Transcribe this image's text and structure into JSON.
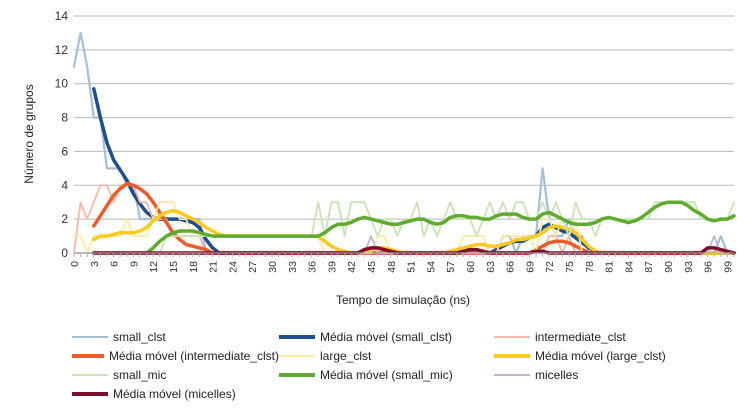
{
  "chart_data": {
    "type": "line",
    "xlabel": "Tempo de simulação (ns)",
    "ylabel": "Número de grupos",
    "ylim": [
      0,
      14
    ],
    "yticks": [
      0,
      2,
      4,
      6,
      8,
      10,
      12,
      14
    ],
    "xlim": [
      0,
      100
    ],
    "xticks": [
      0,
      3,
      6,
      9,
      12,
      15,
      18,
      21,
      24,
      27,
      30,
      33,
      36,
      39,
      42,
      45,
      48,
      51,
      54,
      57,
      60,
      63,
      66,
      69,
      72,
      75,
      78,
      81,
      84,
      87,
      90,
      93,
      96,
      99
    ],
    "x": [
      0,
      1,
      2,
      3,
      4,
      5,
      6,
      7,
      8,
      9,
      10,
      11,
      12,
      13,
      14,
      15,
      16,
      17,
      18,
      19,
      20,
      21,
      22,
      23,
      24,
      25,
      26,
      27,
      28,
      29,
      30,
      31,
      32,
      33,
      34,
      35,
      36,
      37,
      38,
      39,
      40,
      41,
      42,
      43,
      44,
      45,
      46,
      47,
      48,
      49,
      50,
      51,
      52,
      53,
      54,
      55,
      56,
      57,
      58,
      59,
      60,
      61,
      62,
      63,
      64,
      65,
      66,
      67,
      68,
      69,
      70,
      71,
      72,
      73,
      74,
      75,
      76,
      77,
      78,
      79,
      80,
      81,
      82,
      83,
      84,
      85,
      86,
      87,
      88,
      89,
      90,
      91,
      92,
      93,
      94,
      95,
      96,
      97,
      98,
      99,
      100
    ],
    "grid": "horizontal",
    "legend_position": "bottom",
    "series": [
      {
        "name": "small_clst",
        "color": "#a4bfd8",
        "width": 2.2,
        "values": [
          11,
          13,
          11,
          8,
          8,
          5,
          5,
          5,
          4,
          4,
          2,
          2,
          2,
          2,
          2,
          2,
          2,
          2,
          2,
          2,
          0,
          0,
          0,
          0,
          0,
          0,
          0,
          0,
          0,
          0,
          0,
          0,
          0,
          0,
          0,
          0,
          0,
          0,
          0,
          0,
          0,
          0,
          0,
          0,
          0,
          0,
          0,
          0,
          0,
          0,
          0,
          0,
          0,
          0,
          0,
          0,
          0,
          0,
          0,
          0,
          0,
          0,
          0,
          0,
          0,
          1,
          1,
          0,
          1,
          1,
          1,
          5,
          2,
          1,
          1,
          2,
          1,
          1,
          0,
          0,
          0,
          0,
          0,
          0,
          0,
          0,
          0,
          0,
          0,
          0,
          0,
          0,
          0,
          0,
          0,
          0,
          0,
          0,
          1,
          0,
          0
        ]
      },
      {
        "name": "Média móvel (small_clst)",
        "color": "#1f4e8c",
        "width": 3.5,
        "values": [
          null,
          null,
          null,
          9.7,
          8,
          6.5,
          5.5,
          4.9,
          4.3,
          3.5,
          2.9,
          2.4,
          2.1,
          2,
          2,
          2,
          2,
          1.9,
          1.8,
          1.5,
          0.8,
          0.3,
          0,
          0,
          0,
          0,
          0,
          0,
          0,
          0,
          0,
          0,
          0,
          0,
          0,
          0,
          0,
          0,
          0,
          0,
          0,
          0,
          0,
          0,
          0,
          0,
          0,
          0,
          0,
          0,
          0,
          0,
          0,
          0,
          0,
          0,
          0,
          0,
          0,
          0,
          0,
          0,
          0,
          0,
          0.2,
          0.4,
          0.6,
          0.7,
          0.7,
          0.9,
          1,
          1.5,
          1.7,
          1.5,
          1.3,
          1.2,
          0.9,
          0.6,
          0.3,
          0.1,
          0,
          0,
          0,
          0,
          0,
          0,
          0,
          0,
          0,
          0,
          0,
          0,
          0,
          0,
          0,
          0,
          0,
          0,
          0,
          0,
          0
        ]
      },
      {
        "name": "intermediate_clst",
        "color": "#f7b9a5",
        "width": 1.8,
        "values": [
          0,
          3,
          2,
          3,
          4,
          4,
          3,
          4,
          4,
          4,
          3,
          3,
          2,
          2,
          2,
          1,
          1,
          1,
          1,
          1,
          0,
          0,
          0,
          0,
          0,
          0,
          0,
          0,
          0,
          0,
          0,
          0,
          0,
          0,
          0,
          0,
          0,
          0,
          0,
          0,
          0,
          0,
          0,
          0,
          0,
          0,
          0,
          0,
          0,
          0,
          0,
          0,
          0,
          0,
          0,
          0,
          0,
          0,
          0,
          0,
          0,
          0,
          0,
          0,
          0,
          0,
          0,
          0,
          0,
          0,
          0,
          0,
          1,
          1,
          0,
          1,
          0,
          0,
          0,
          0,
          0,
          0,
          0,
          0,
          0,
          0,
          0,
          0,
          0,
          0,
          0,
          0,
          0,
          0,
          0,
          0,
          0,
          0,
          0,
          0,
          0
        ]
      },
      {
        "name": "Média móvel (intermediate_clst)",
        "color": "#f05a28",
        "width": 3.5,
        "values": [
          null,
          null,
          null,
          1.6,
          2.2,
          2.8,
          3.4,
          3.8,
          4.1,
          4,
          3.8,
          3.5,
          3,
          2.4,
          1.8,
          1.2,
          0.8,
          0.5,
          0.4,
          0.3,
          0.2,
          0,
          0,
          0,
          0,
          0,
          0,
          0,
          0,
          0,
          0,
          0,
          0,
          0,
          0,
          0,
          0,
          0,
          0,
          0,
          0,
          0,
          0,
          0,
          0,
          0,
          0,
          0,
          0,
          0,
          0,
          0,
          0,
          0,
          0,
          0,
          0,
          0,
          0,
          0,
          0,
          0,
          0,
          0,
          0,
          0,
          0,
          0,
          0,
          0,
          0.2,
          0.4,
          0.6,
          0.7,
          0.7,
          0.6,
          0.4,
          0.2,
          0,
          0,
          0,
          0,
          0,
          0,
          0,
          0,
          0,
          0,
          0,
          0,
          0,
          0,
          0,
          0,
          0,
          0,
          0,
          0,
          0,
          0,
          0
        ]
      },
      {
        "name": "large_clst",
        "color": "#fce9a2",
        "width": 1.8,
        "values": [
          1,
          1,
          0,
          1,
          1,
          1,
          1,
          1,
          2,
          1,
          1,
          1,
          2,
          3,
          3,
          3,
          2,
          2,
          1,
          1,
          1,
          1,
          1,
          1,
          1,
          1,
          1,
          1,
          1,
          1,
          1,
          1,
          1,
          1,
          1,
          1,
          1,
          1,
          0,
          0,
          0,
          0,
          0,
          0,
          0,
          0,
          1,
          1,
          0,
          0,
          0,
          0,
          0,
          0,
          0,
          0,
          0,
          0,
          0,
          1,
          1,
          1,
          1,
          0,
          0,
          1,
          1,
          1,
          1,
          1,
          0,
          2,
          2,
          1,
          2,
          1,
          2,
          0,
          0,
          0,
          0,
          0,
          0,
          0,
          0,
          0,
          0,
          0,
          0,
          0,
          0,
          0,
          0,
          0,
          0,
          0,
          0,
          0,
          0,
          0,
          0
        ]
      },
      {
        "name": "Média móvel (large_clst)",
        "color": "#fbca1c",
        "width": 3.5,
        "values": [
          null,
          null,
          null,
          0.8,
          1,
          1,
          1.1,
          1.2,
          1.2,
          1.2,
          1.3,
          1.5,
          1.9,
          2.2,
          2.4,
          2.5,
          2.4,
          2.2,
          2,
          1.8,
          1.5,
          1.3,
          1.1,
          1,
          1,
          1,
          1,
          1,
          1,
          1,
          1,
          1,
          1,
          1,
          1,
          1,
          1,
          1,
          0.7,
          0.4,
          0.2,
          0.1,
          0,
          0,
          0.1,
          0.2,
          0.3,
          0.3,
          0.2,
          0.1,
          0,
          0,
          0,
          0,
          0,
          0,
          0,
          0.1,
          0.2,
          0.3,
          0.4,
          0.5,
          0.5,
          0.4,
          0.4,
          0.5,
          0.6,
          0.8,
          0.8,
          0.9,
          1,
          1.2,
          1.5,
          1.6,
          1.5,
          1.4,
          1.2,
          0.8,
          0.4,
          0.1,
          0,
          0,
          0,
          0,
          0,
          0,
          0,
          0,
          0,
          0,
          0,
          0,
          0,
          0,
          0,
          0,
          0,
          0,
          0,
          0,
          0
        ]
      },
      {
        "name": "small_mic",
        "color": "#c9e3b4",
        "width": 1.8,
        "values": [
          0,
          0,
          0,
          0,
          0,
          0,
          0,
          0,
          0,
          0,
          0,
          0,
          0,
          0,
          1,
          1,
          1,
          1,
          1,
          1,
          1,
          1,
          1,
          1,
          1,
          1,
          1,
          1,
          1,
          1,
          1,
          1,
          1,
          1,
          1,
          1,
          1,
          3,
          1,
          3,
          3,
          1,
          3,
          3,
          3,
          2,
          1,
          2,
          2,
          1,
          2,
          2,
          3,
          1,
          2,
          1,
          2,
          3,
          2,
          2,
          2,
          1,
          2,
          3,
          2,
          3,
          2,
          3,
          3,
          2,
          2,
          3,
          2,
          3,
          2,
          1,
          3,
          2,
          2,
          1,
          2,
          2,
          2,
          2,
          2,
          2,
          2,
          2,
          3,
          3,
          3,
          3,
          3,
          3,
          3,
          2,
          2,
          2,
          2,
          2,
          3
        ]
      },
      {
        "name": "Média móvel (small_mic)",
        "color": "#5fab2f",
        "width": 3.5,
        "values": [
          null,
          null,
          null,
          0,
          0,
          0,
          0,
          0,
          0,
          0,
          0,
          0,
          0.3,
          0.7,
          1,
          1.2,
          1.3,
          1.3,
          1.3,
          1.2,
          1.1,
          1,
          1,
          1,
          1,
          1,
          1,
          1,
          1,
          1,
          1,
          1,
          1,
          1,
          1,
          1,
          1,
          1,
          1.2,
          1.5,
          1.7,
          1.7,
          1.8,
          2,
          2.1,
          2,
          1.9,
          1.8,
          1.7,
          1.7,
          1.8,
          1.9,
          2,
          2,
          1.8,
          1.7,
          1.8,
          2.1,
          2.2,
          2.2,
          2.1,
          2.1,
          2,
          2,
          2.2,
          2.3,
          2.3,
          2.3,
          2.1,
          2,
          2,
          2.3,
          2.4,
          2.2,
          2,
          1.8,
          1.7,
          1.7,
          1.7,
          1.8,
          2,
          2.1,
          2,
          1.9,
          1.8,
          1.9,
          2.1,
          2.4,
          2.7,
          2.9,
          3,
          3,
          3,
          2.8,
          2.5,
          2.3,
          2,
          1.9,
          2,
          2,
          2.2
        ]
      },
      {
        "name": "micelles",
        "color": "#c6b3cf",
        "width": 1.8,
        "values": [
          0,
          0,
          0,
          0,
          0,
          0,
          0,
          0,
          0,
          0,
          0,
          0,
          0,
          0,
          0,
          0,
          0,
          0,
          0,
          0,
          0,
          0,
          0,
          0,
          0,
          0,
          0,
          0,
          0,
          0,
          0,
          0,
          0,
          0,
          0,
          0,
          0,
          0,
          0,
          0,
          0,
          0,
          0,
          0,
          0,
          1,
          0,
          0,
          0,
          0,
          0,
          0,
          0,
          0,
          0,
          0,
          0,
          0,
          0,
          0,
          0,
          0,
          0,
          0,
          0,
          0,
          0,
          0,
          0,
          0,
          0,
          0,
          0,
          0,
          0,
          0,
          0,
          0,
          0,
          0,
          0,
          0,
          0,
          0,
          0,
          0,
          0,
          0,
          0,
          0,
          0,
          0,
          0,
          0,
          0,
          0,
          0,
          1,
          0,
          0,
          0
        ]
      },
      {
        "name": "Média móvel (micelles)",
        "color": "#7b0f2a",
        "width": 3.5,
        "values": [
          null,
          null,
          null,
          0,
          0,
          0,
          0,
          0,
          0,
          0,
          0,
          0,
          0,
          0,
          0,
          0,
          0,
          0,
          0,
          0,
          0,
          0,
          0,
          0,
          0,
          0,
          0,
          0,
          0,
          0,
          0,
          0,
          0,
          0,
          0,
          0,
          0,
          0,
          0,
          0,
          0,
          0,
          0,
          0,
          0.2,
          0.3,
          0.3,
          0.2,
          0.1,
          0,
          0,
          0,
          0,
          0,
          0,
          0,
          0,
          0,
          0,
          0.1,
          0.2,
          0.2,
          0.1,
          0,
          0,
          0,
          0,
          0,
          0,
          0,
          0.1,
          0.1,
          0,
          0,
          0,
          0,
          0,
          0,
          0,
          0,
          0,
          0,
          0,
          0,
          0,
          0,
          0,
          0,
          0,
          0,
          0,
          0,
          0,
          0,
          0,
          0,
          0.3,
          0.3,
          0.2,
          0.1,
          0
        ]
      }
    ]
  }
}
